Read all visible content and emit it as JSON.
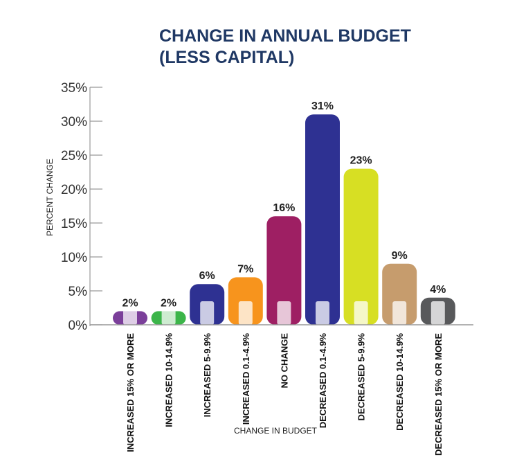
{
  "chart_data": {
    "type": "bar",
    "title": [
      "CHANGE IN ANNUAL BUDGET",
      "(LESS CAPITAL)"
    ],
    "xlabel": "CHANGE IN BUDGET",
    "ylabel": "PERCENT CHANGE",
    "ylim": [
      0,
      35
    ],
    "yticks": [
      0,
      5,
      10,
      15,
      20,
      25,
      30,
      35
    ],
    "ytick_labels": [
      "0%",
      "5%",
      "10%",
      "15%",
      "20%",
      "25%",
      "30%",
      "35%"
    ],
    "categories": [
      "INCREASED 15% OR MORE",
      "INCREASED 10-14.9%",
      "INCREASED 5-9.9%",
      "INCREASED 0.1-4.9%",
      "NO CHANGE",
      "DECREASED 0.1-4.9%",
      "DECREASED 5-9.9%",
      "DECREASED  10-14.9%",
      "DECREASED 15% OR MORE"
    ],
    "values": [
      2,
      2,
      6,
      7,
      16,
      31,
      23,
      9,
      4
    ],
    "value_labels": [
      "2%",
      "2%",
      "6%",
      "7%",
      "16%",
      "31%",
      "23%",
      "9%",
      "4%"
    ],
    "colors": [
      "#7b3f9a",
      "#3cb54a",
      "#2e3192",
      "#f7941d",
      "#9e1f63",
      "#2e3192",
      "#d7df23",
      "#c69c6d",
      "#58595b"
    ],
    "legend": "none",
    "grid": false
  }
}
